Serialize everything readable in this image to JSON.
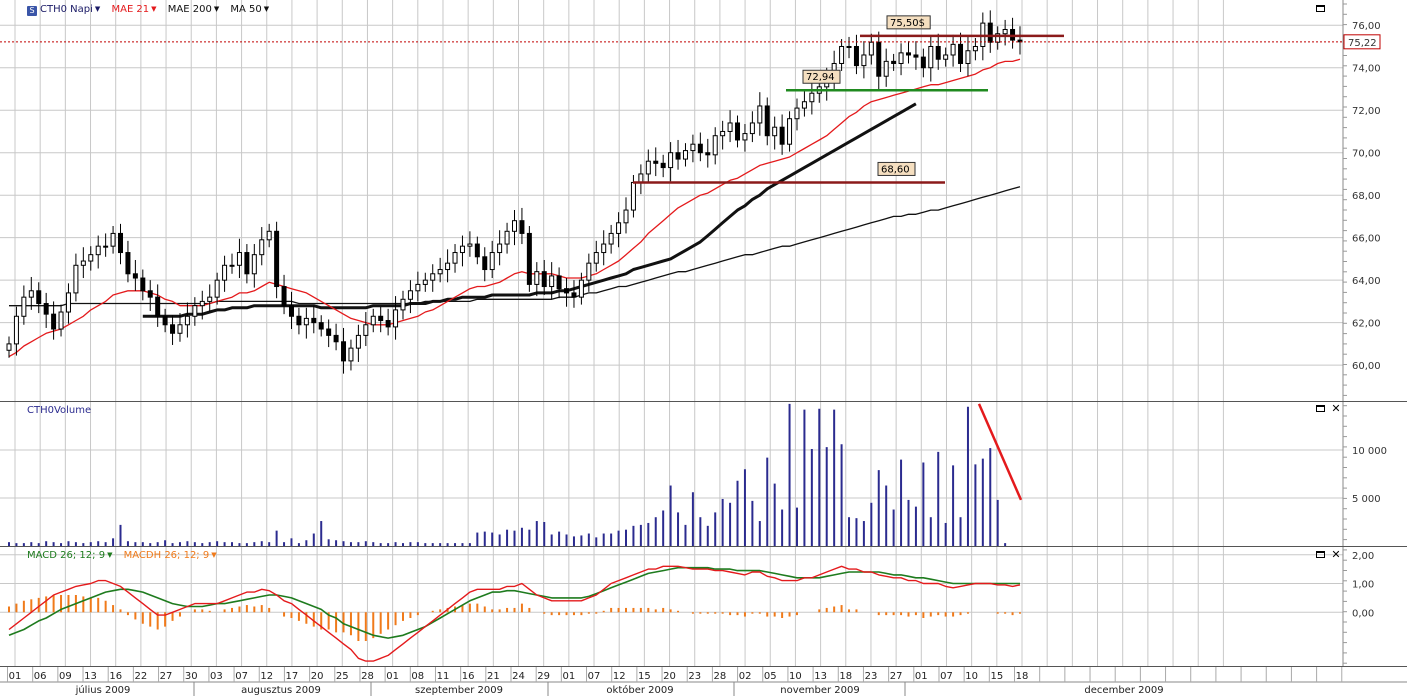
{
  "legend": {
    "symbol": "CTH0 Napi",
    "mae21": "MAE 21",
    "mae200": "MAE 200",
    "ma50": "MA 50",
    "volume": "CTH0Volume",
    "macd": "MACD 26; 12; 9",
    "macdh": "MACDH 26; 12; 9"
  },
  "last_price_label": "75,22",
  "colors": {
    "candle": "#000000",
    "mae21": "#e41a1c",
    "mae200": "#111111",
    "ma50": "#111111",
    "volume": "#2b2b8f",
    "macd": "#e41a1c",
    "macd_signal": "#1e7b1e",
    "macdh": "#f07a1a",
    "grid": "#c8c8c8",
    "last_price_line": "#c00000"
  },
  "chart_data": [
    {
      "type": "candlestick",
      "name": "price",
      "ylim": [
        58.5,
        77
      ],
      "yticks": [
        "76,00",
        "74,00",
        "72,00",
        "70,00",
        "68,00",
        "66,00",
        "64,00",
        "62,00",
        "60,00"
      ],
      "ytick_values": [
        76,
        74,
        72,
        70,
        68,
        66,
        64,
        62,
        60
      ],
      "close": [
        61.0,
        62.3,
        63.2,
        63.5,
        62.9,
        62.4,
        61.7,
        62.5,
        63.4,
        64.7,
        64.9,
        65.2,
        65.6,
        65.6,
        66.2,
        65.3,
        64.3,
        64.1,
        63.5,
        63.2,
        62.3,
        61.9,
        61.5,
        61.9,
        62.3,
        62.8,
        63.0,
        63.2,
        64.0,
        64.7,
        64.7,
        65.3,
        64.3,
        65.2,
        65.9,
        66.3,
        63.7,
        62.8,
        62.3,
        61.9,
        62.2,
        62.0,
        61.7,
        61.4,
        61.1,
        60.2,
        60.8,
        61.4,
        61.9,
        62.3,
        62.1,
        61.8,
        62.6,
        63.1,
        63.5,
        63.8,
        64.0,
        64.3,
        64.5,
        64.8,
        65.3,
        65.6,
        65.7,
        65.1,
        64.5,
        65.3,
        65.7,
        66.3,
        66.8,
        66.2,
        63.8,
        64.4,
        63.7,
        64.2,
        63.6,
        63.4,
        63.2,
        64.0,
        64.8,
        65.3,
        65.7,
        66.2,
        66.7,
        67.3,
        68.6,
        69.0,
        69.6,
        69.5,
        69.3,
        70.0,
        69.7,
        70.1,
        70.4,
        70.0,
        69.9,
        70.8,
        71.0,
        71.4,
        70.6,
        70.9,
        71.4,
        72.2,
        70.8,
        71.2,
        70.4,
        71.6,
        72.1,
        72.4,
        72.8,
        73.1,
        73.5,
        74.2,
        75.0,
        75.0,
        74.1,
        74.6,
        75.2,
        73.6,
        74.3,
        74.2,
        74.7,
        74.6,
        74.5,
        74.0,
        75.0,
        74.4,
        74.6,
        75.1,
        74.2,
        74.8,
        75.0,
        76.1,
        75.2,
        75.6,
        75.8,
        75.3,
        75.22
      ],
      "mae21": [
        60.4,
        60.6,
        60.9,
        61.1,
        61.3,
        61.5,
        61.6,
        61.7,
        61.9,
        62.1,
        62.3,
        62.6,
        62.8,
        63.0,
        63.3,
        63.4,
        63.5,
        63.5,
        63.5,
        63.4,
        63.3,
        63.1,
        63.0,
        62.8,
        62.8,
        62.8,
        62.8,
        62.9,
        63.0,
        63.1,
        63.2,
        63.4,
        63.4,
        63.5,
        63.7,
        63.9,
        63.8,
        63.7,
        63.6,
        63.5,
        63.4,
        63.2,
        63.0,
        62.8,
        62.6,
        62.4,
        62.2,
        62.1,
        62.0,
        61.9,
        61.9,
        61.9,
        62.0,
        62.1,
        62.2,
        62.3,
        62.5,
        62.6,
        62.8,
        63.0,
        63.2,
        63.4,
        63.6,
        63.7,
        63.7,
        63.8,
        63.9,
        64.1,
        64.3,
        64.4,
        64.3,
        64.3,
        64.3,
        64.3,
        64.2,
        64.1,
        64.1,
        64.1,
        64.2,
        64.3,
        64.5,
        64.7,
        64.9,
        65.2,
        65.5,
        65.8,
        66.2,
        66.5,
        66.8,
        67.1,
        67.4,
        67.6,
        67.8,
        68.0,
        68.1,
        68.3,
        68.5,
        68.7,
        68.8,
        69.0,
        69.2,
        69.4,
        69.5,
        69.6,
        69.7,
        69.8,
        70.0,
        70.2,
        70.4,
        70.6,
        70.8,
        71.1,
        71.4,
        71.7,
        71.9,
        72.2,
        72.4,
        72.5,
        72.6,
        72.7,
        72.8,
        72.9,
        73.0,
        73.1,
        73.2,
        73.2,
        73.3,
        73.4,
        73.5,
        73.6,
        73.7,
        73.9,
        74.0,
        74.2,
        74.3,
        74.3,
        74.4
      ],
      "ma50": [
        null,
        null,
        null,
        null,
        null,
        null,
        null,
        null,
        null,
        null,
        null,
        null,
        null,
        null,
        null,
        null,
        null,
        null,
        62.3,
        62.3,
        62.3,
        62.3,
        62.3,
        62.3,
        62.4,
        62.4,
        62.4,
        62.5,
        62.6,
        62.6,
        62.7,
        62.7,
        62.7,
        62.8,
        62.8,
        62.8,
        62.8,
        62.8,
        62.8,
        62.8,
        62.8,
        62.8,
        62.7,
        62.7,
        62.7,
        62.7,
        62.7,
        62.7,
        62.7,
        62.8,
        62.8,
        62.8,
        62.8,
        62.8,
        62.9,
        62.9,
        62.9,
        63.0,
        63.0,
        63.1,
        63.1,
        63.2,
        63.2,
        63.2,
        63.2,
        63.3,
        63.3,
        63.3,
        63.3,
        63.3,
        63.3,
        63.4,
        63.4,
        63.4,
        63.5,
        63.5,
        63.6,
        63.7,
        63.8,
        63.9,
        64.0,
        64.1,
        64.2,
        64.3,
        64.5,
        64.6,
        64.7,
        64.8,
        64.9,
        65.0,
        65.2,
        65.4,
        65.6,
        65.8,
        66.1,
        66.4,
        66.7,
        67.0,
        67.3,
        67.5,
        67.8,
        68.0,
        68.3,
        68.5,
        68.7,
        68.9,
        69.1,
        69.3,
        69.5,
        69.7,
        69.9,
        70.1,
        70.3,
        70.5,
        70.7,
        70.9,
        71.1,
        71.3,
        71.5,
        71.7,
        71.9,
        72.1,
        72.3
      ],
      "mae200": [
        62.8,
        62.8,
        62.8,
        62.8,
        62.8,
        62.8,
        62.8,
        62.8,
        62.9,
        62.9,
        62.9,
        62.9,
        62.9,
        62.9,
        62.9,
        62.9,
        62.9,
        62.9,
        62.9,
        62.9,
        62.9,
        62.9,
        62.9,
        62.9,
        62.9,
        62.9,
        62.9,
        62.9,
        63.0,
        63.0,
        63.0,
        63.0,
        63.0,
        63.0,
        63.0,
        63.0,
        63.0,
        63.0,
        63.0,
        62.9,
        62.9,
        62.9,
        62.9,
        62.9,
        62.9,
        62.9,
        62.9,
        62.9,
        62.9,
        62.9,
        62.9,
        62.9,
        62.9,
        62.9,
        62.9,
        62.9,
        63.0,
        63.0,
        63.0,
        63.0,
        63.0,
        63.0,
        63.0,
        63.1,
        63.1,
        63.1,
        63.1,
        63.1,
        63.1,
        63.1,
        63.1,
        63.1,
        63.1,
        63.1,
        63.2,
        63.2,
        63.2,
        63.3,
        63.4,
        63.4,
        63.5,
        63.6,
        63.7,
        63.7,
        63.8,
        63.9,
        64.0,
        64.1,
        64.2,
        64.3,
        64.4,
        64.4,
        64.5,
        64.6,
        64.7,
        64.8,
        64.9,
        65.0,
        65.1,
        65.2,
        65.2,
        65.3,
        65.4,
        65.5,
        65.6,
        65.6,
        65.7,
        65.8,
        65.9,
        66.0,
        66.1,
        66.2,
        66.3,
        66.4,
        66.5,
        66.6,
        66.7,
        66.8,
        66.9,
        67.0,
        67.0,
        67.1,
        67.1,
        67.2,
        67.3,
        67.3,
        67.4,
        67.5,
        67.6,
        67.7,
        67.8,
        67.9,
        68.0,
        68.1,
        68.2,
        68.3,
        68.4
      ],
      "annotations": [
        {
          "label": "75,50$",
          "value": 75.5
        },
        {
          "label": "72,94",
          "value": 72.94
        },
        {
          "label": "68,60",
          "value": 68.6
        }
      ],
      "last_price": 75.22
    },
    {
      "type": "bar",
      "name": "volume",
      "ylim": [
        0,
        15000
      ],
      "yticks": [
        "10 000",
        "5 000"
      ],
      "ytick_values": [
        10000,
        5000
      ],
      "values": [
        400,
        300,
        300,
        400,
        300,
        500,
        400,
        300,
        500,
        400,
        300,
        400,
        500,
        400,
        800,
        2200,
        500,
        400,
        400,
        300,
        400,
        600,
        300,
        400,
        500,
        400,
        300,
        400,
        500,
        400,
        400,
        300,
        300,
        400,
        500,
        400,
        1600,
        400,
        800,
        300,
        600,
        1300,
        2600,
        700,
        600,
        500,
        400,
        400,
        500,
        400,
        300,
        300,
        400,
        300,
        400,
        400,
        300,
        300,
        300,
        300,
        300,
        300,
        300,
        1400,
        1500,
        1400,
        1200,
        1700,
        1600,
        1900,
        1700,
        2600,
        2500,
        1200,
        1500,
        1200,
        1000,
        1100,
        1300,
        900,
        1300,
        1300,
        1600,
        1700,
        2100,
        2200,
        2400,
        3000,
        3700,
        6300,
        3500,
        2200,
        5600,
        3000,
        2100,
        3500,
        4900,
        4500,
        6800,
        8000,
        4700,
        2600,
        9200,
        6500,
        3800,
        14800,
        4000,
        14200,
        10100,
        14300,
        10300,
        14200,
        10600,
        3000,
        2900,
        2600,
        4500,
        7900,
        6300,
        3800,
        9000,
        4800,
        4100,
        8700,
        3000,
        9800,
        2400,
        8400,
        3000,
        14500,
        8500,
        9100,
        10200,
        4800,
        300
      ]
    },
    {
      "type": "line",
      "name": "macd",
      "ylim": [
        -1.8,
        2.2
      ],
      "yticks": [
        "2,00",
        "1,00",
        "0,00"
      ],
      "ytick_values": [
        2,
        1,
        0
      ],
      "series": [
        {
          "name": "MACD 26; 12; 9",
          "values": [
            -0.6,
            -0.4,
            -0.2,
            0.0,
            0.2,
            0.4,
            0.6,
            0.7,
            0.8,
            0.9,
            0.95,
            1.0,
            1.1,
            1.1,
            1.0,
            0.9,
            0.7,
            0.5,
            0.3,
            0.1,
            -0.1,
            -0.1,
            -0.0,
            0.1,
            0.2,
            0.3,
            0.3,
            0.3,
            0.3,
            0.4,
            0.5,
            0.6,
            0.7,
            0.7,
            0.8,
            0.75,
            0.6,
            0.4,
            0.3,
            0.1,
            -0.1,
            -0.3,
            -0.5,
            -0.7,
            -0.9,
            -1.1,
            -1.3,
            -1.6,
            -1.7,
            -1.7,
            -1.6,
            -1.5,
            -1.3,
            -1.1,
            -0.9,
            -0.7,
            -0.5,
            -0.3,
            -0.1,
            0.1,
            0.3,
            0.5,
            0.7,
            0.8,
            0.8,
            0.8,
            0.8,
            0.9,
            0.9,
            1.0,
            0.8,
            0.6,
            0.5,
            0.4,
            0.4,
            0.4,
            0.4,
            0.4,
            0.5,
            0.6,
            0.8,
            1.0,
            1.1,
            1.2,
            1.3,
            1.4,
            1.5,
            1.5,
            1.6,
            1.6,
            1.6,
            1.55,
            1.5,
            1.5,
            1.5,
            1.45,
            1.45,
            1.4,
            1.35,
            1.3,
            1.4,
            1.4,
            1.25,
            1.2,
            1.1,
            1.1,
            1.1,
            1.2,
            1.2,
            1.3,
            1.4,
            1.5,
            1.6,
            1.5,
            1.5,
            1.4,
            1.4,
            1.3,
            1.25,
            1.2,
            1.2,
            1.1,
            1.1,
            1.0,
            1.0,
            1.0,
            0.9,
            0.85,
            0.9,
            0.95,
            1.0,
            1.0,
            1.0,
            0.95,
            0.95,
            0.9,
            0.95
          ]
        },
        {
          "name": "signal",
          "values": [
            -0.8,
            -0.7,
            -0.6,
            -0.45,
            -0.3,
            -0.2,
            -0.05,
            0.1,
            0.2,
            0.3,
            0.4,
            0.5,
            0.6,
            0.7,
            0.75,
            0.8,
            0.8,
            0.75,
            0.7,
            0.6,
            0.5,
            0.4,
            0.3,
            0.25,
            0.2,
            0.2,
            0.2,
            0.25,
            0.3,
            0.3,
            0.35,
            0.4,
            0.45,
            0.5,
            0.55,
            0.6,
            0.6,
            0.55,
            0.5,
            0.4,
            0.3,
            0.2,
            0.1,
            -0.1,
            -0.2,
            -0.4,
            -0.5,
            -0.6,
            -0.7,
            -0.8,
            -0.85,
            -0.9,
            -0.85,
            -0.8,
            -0.7,
            -0.6,
            -0.5,
            -0.35,
            -0.2,
            -0.05,
            0.1,
            0.25,
            0.4,
            0.5,
            0.6,
            0.7,
            0.7,
            0.75,
            0.75,
            0.7,
            0.65,
            0.6,
            0.55,
            0.5,
            0.5,
            0.5,
            0.5,
            0.5,
            0.55,
            0.65,
            0.75,
            0.85,
            0.95,
            1.05,
            1.15,
            1.25,
            1.35,
            1.4,
            1.45,
            1.5,
            1.55,
            1.55,
            1.55,
            1.55,
            1.55,
            1.5,
            1.5,
            1.5,
            1.45,
            1.45,
            1.45,
            1.45,
            1.4,
            1.35,
            1.3,
            1.25,
            1.2,
            1.2,
            1.2,
            1.2,
            1.25,
            1.3,
            1.35,
            1.4,
            1.4,
            1.4,
            1.4,
            1.4,
            1.35,
            1.3,
            1.3,
            1.25,
            1.2,
            1.2,
            1.15,
            1.1,
            1.05,
            1.0,
            1.0,
            1.0,
            1.0,
            1.0,
            1.0,
            1.0,
            1.0,
            1.0,
            1.0
          ]
        }
      ],
      "histogram": {
        "name": "MACDH 26; 12; 9",
        "values": [
          0.2,
          0.3,
          0.4,
          0.45,
          0.5,
          0.55,
          0.6,
          0.6,
          0.6,
          0.6,
          0.55,
          0.5,
          0.5,
          0.4,
          0.25,
          0.1,
          -0.1,
          -0.25,
          -0.4,
          -0.5,
          -0.6,
          -0.5,
          -0.3,
          -0.15,
          0.0,
          0.1,
          0.1,
          0.05,
          0.0,
          0.1,
          0.15,
          0.2,
          0.25,
          0.2,
          0.25,
          0.15,
          0.0,
          -0.15,
          -0.2,
          -0.3,
          -0.4,
          -0.5,
          -0.6,
          -0.6,
          -0.7,
          -0.7,
          -0.8,
          -1.0,
          -1.0,
          -0.9,
          -0.75,
          -0.6,
          -0.45,
          -0.3,
          -0.2,
          -0.1,
          0.0,
          0.05,
          0.1,
          0.15,
          0.2,
          0.25,
          0.3,
          0.3,
          0.2,
          0.1,
          0.1,
          0.15,
          0.15,
          0.3,
          0.15,
          0.0,
          -0.05,
          -0.1,
          -0.1,
          -0.1,
          -0.1,
          -0.1,
          -0.05,
          -0.05,
          0.05,
          0.15,
          0.15,
          0.15,
          0.15,
          0.15,
          0.15,
          0.1,
          0.15,
          0.1,
          0.05,
          0.0,
          -0.05,
          -0.05,
          -0.05,
          -0.05,
          -0.05,
          -0.1,
          -0.1,
          -0.15,
          -0.05,
          -0.05,
          -0.15,
          -0.15,
          -0.2,
          -0.15,
          -0.1,
          0.0,
          0.0,
          0.1,
          0.15,
          0.2,
          0.25,
          0.1,
          0.1,
          0.0,
          0.0,
          -0.1,
          -0.1,
          -0.1,
          -0.1,
          -0.15,
          -0.1,
          -0.2,
          -0.15,
          -0.1,
          -0.15,
          -0.15,
          -0.1,
          -0.05,
          0.0,
          0.0,
          0.0,
          -0.05,
          -0.05,
          -0.1,
          -0.05
        ]
      }
    }
  ],
  "x_axis": {
    "day_labels": [
      "01",
      "06",
      "09",
      "13",
      "16",
      "22",
      "27",
      "30",
      "03",
      "07",
      "12",
      "17",
      "20",
      "25",
      "28",
      "01",
      "08",
      "11",
      "16",
      "21",
      "24",
      "29",
      "01",
      "07",
      "12",
      "15",
      "20",
      "23",
      "28",
      "02",
      "05",
      "10",
      "13",
      "18",
      "23",
      "27",
      "01",
      "07",
      "10",
      "15",
      "18"
    ],
    "month_labels": [
      "július 2009",
      "augusztus 2009",
      "szeptember 2009",
      "október 2009",
      "november 2009",
      "december 2009"
    ]
  }
}
